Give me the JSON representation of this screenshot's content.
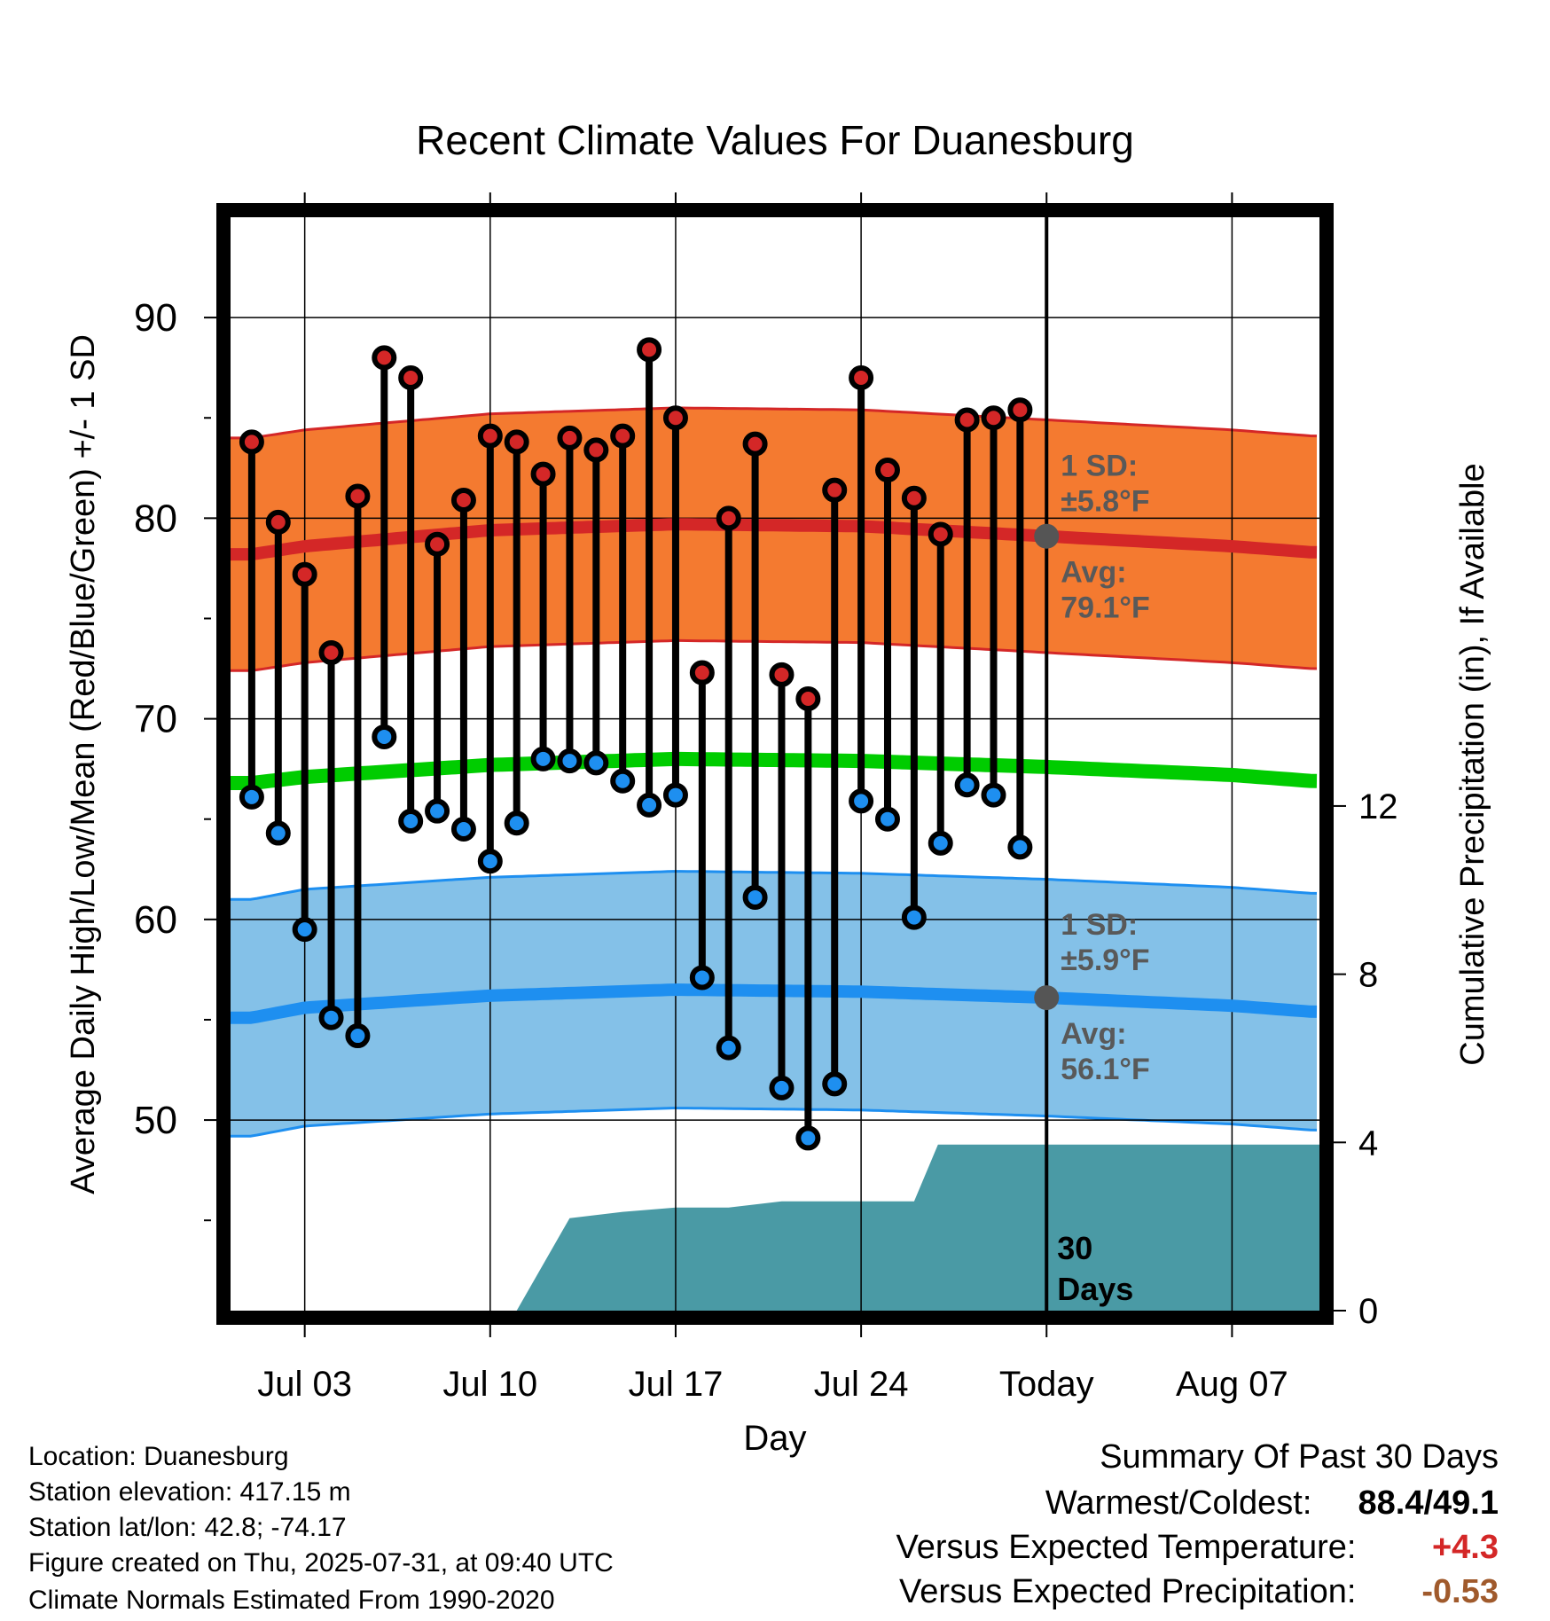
{
  "chart_data": {
    "type": "line",
    "title": "Recent Climate Values For Duanesburg",
    "xlabel": "Day",
    "ylabel_left": "Average Daily High/Low/Mean (Red/Blue/Green) +/- 1 SD",
    "ylabel_right": "Cumulative Precipitation (in), If Available",
    "ylim_left": [
      40.5,
      95
    ],
    "ylim_right": [
      0,
      26
    ],
    "yticks_left": [
      50,
      60,
      70,
      80,
      90
    ],
    "yticks_right": [
      0,
      4,
      8,
      12
    ],
    "xlim_day_index": [
      -2.8,
      38.3
    ],
    "xticks": [
      {
        "day": 0,
        "label": "Jul 03"
      },
      {
        "day": 7,
        "label": "Jul 10"
      },
      {
        "day": 14,
        "label": "Jul 17"
      },
      {
        "day": 21,
        "label": "Jul 24"
      },
      {
        "day": 28,
        "label": "Today"
      },
      {
        "day": 35,
        "label": "Aug 07"
      }
    ],
    "grid": true,
    "today_day_index": 28,
    "observed": {
      "dates": [
        "Jul 01",
        "Jul 02",
        "Jul 03",
        "Jul 04",
        "Jul 05",
        "Jul 06",
        "Jul 07",
        "Jul 08",
        "Jul 09",
        "Jul 10",
        "Jul 11",
        "Jul 12",
        "Jul 13",
        "Jul 14",
        "Jul 15",
        "Jul 16",
        "Jul 17",
        "Jul 18",
        "Jul 19",
        "Jul 20",
        "Jul 21",
        "Jul 22",
        "Jul 23",
        "Jul 24",
        "Jul 25",
        "Jul 26",
        "Jul 27",
        "Jul 28",
        "Jul 29",
        "Jul 30"
      ],
      "high": [
        83.8,
        79.8,
        77.2,
        73.3,
        81.1,
        88.0,
        87.0,
        78.7,
        80.9,
        84.1,
        83.8,
        82.2,
        84.0,
        83.4,
        84.1,
        88.4,
        85.0,
        72.3,
        80.0,
        83.7,
        72.2,
        71.0,
        81.4,
        87.0,
        82.4,
        81.0,
        79.2,
        84.9,
        85.0,
        85.4
      ],
      "low": [
        66.1,
        64.3,
        59.5,
        55.1,
        54.2,
        69.1,
        64.9,
        65.4,
        64.5,
        62.9,
        64.8,
        68.0,
        67.9,
        67.8,
        66.9,
        65.7,
        66.2,
        57.1,
        53.6,
        61.1,
        51.6,
        49.1,
        51.8,
        65.9,
        65.0,
        60.1,
        63.8,
        66.7,
        66.2,
        63.6
      ]
    },
    "normals": {
      "days": [
        -2,
        0,
        7,
        14,
        21,
        28,
        35,
        38
      ],
      "avg_high": [
        78.2,
        78.6,
        79.4,
        79.7,
        79.6,
        79.1,
        78.6,
        78.3
      ],
      "avg_mean": [
        66.8,
        67.1,
        67.7,
        68.0,
        67.9,
        67.6,
        67.2,
        66.9
      ],
      "avg_low": [
        55.1,
        55.6,
        56.2,
        56.5,
        56.4,
        56.1,
        55.7,
        55.4
      ],
      "sd_high": 5.8,
      "sd_low": 5.9
    },
    "precip_cumulative": {
      "days": [
        8,
        10,
        12,
        14,
        16,
        18,
        20,
        22,
        23,
        23.9,
        38.3
      ],
      "values": [
        0.0,
        2.2,
        2.35,
        2.45,
        2.45,
        2.6,
        2.6,
        2.6,
        2.6,
        3.95,
        3.95
      ]
    },
    "annotations": {
      "high_sd_label": "1 SD:",
      "high_sd_value": "±5.8°F",
      "high_avg_label": "Avg:",
      "high_avg_value": "79.1°F",
      "low_sd_label": "1 SD:",
      "low_sd_value": "±5.9°F",
      "low_avg_label": "Avg:",
      "low_avg_value": "56.1°F",
      "window_count": "30",
      "window_unit": "Days"
    }
  },
  "info": {
    "location": "Location: Duanesburg",
    "elevation": "Station elevation: 417.15 m",
    "latlon": "Station lat/lon: 42.8; -74.17",
    "created": "Figure created on Thu, 2025-07-31, at 09:40 UTC",
    "normals": "Climate Normals Estimated From 1990-2020"
  },
  "summary": {
    "heading": "Summary Of Past 30 Days",
    "warm_cold_label": "Warmest/Coldest:",
    "warm_cold_value": "88.4/49.1",
    "temp_label": "Versus Expected Temperature:",
    "temp_value": "+4.3",
    "precip_label": "Versus Expected Precipitation:",
    "precip_value": "-0.53"
  },
  "colors": {
    "high_band": "#f47a30",
    "high_line": "#d42727",
    "mean_line": "#00cc00",
    "low_band": "#84c1e8",
    "low_line": "#1e8ff0",
    "precip_fill": "#4a9aa5",
    "annotation_text": "#595959",
    "temp_positive": "#d42727",
    "precip_negative": "#a05a2c"
  }
}
